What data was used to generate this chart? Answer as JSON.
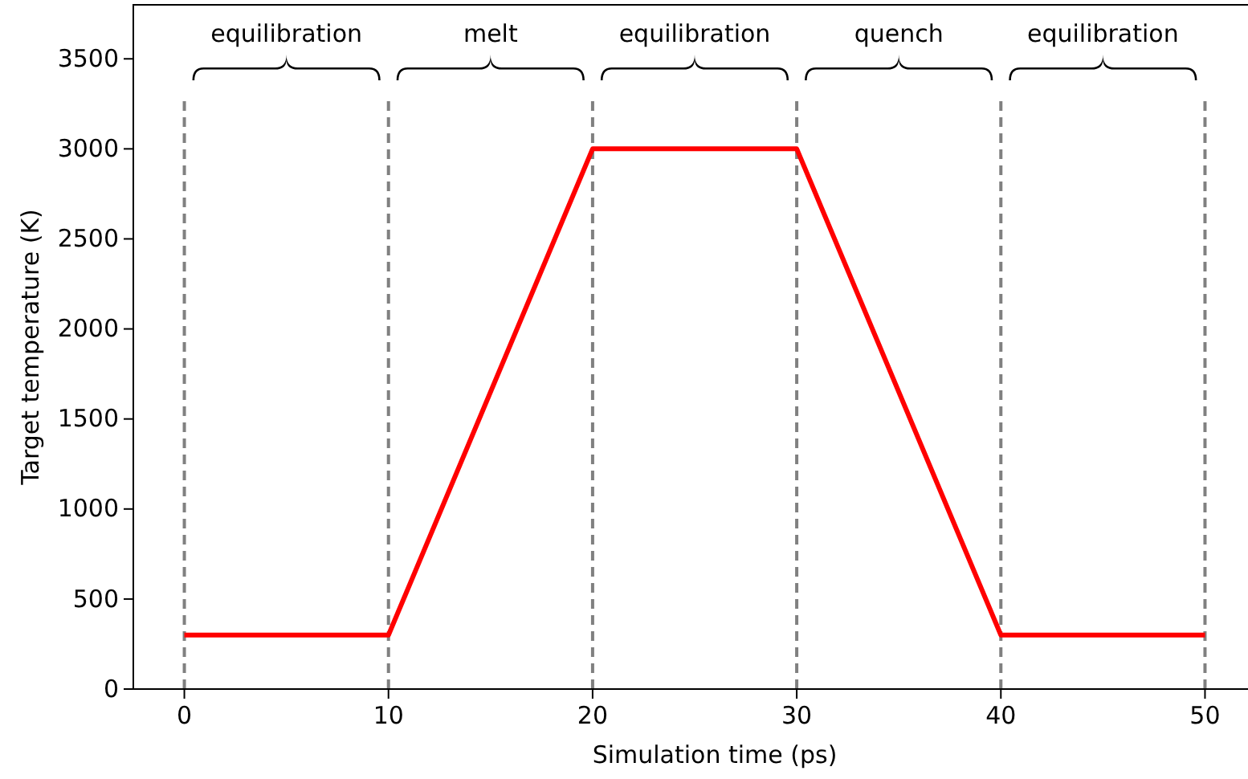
{
  "chart_data": {
    "type": "line",
    "xlabel": "Simulation time (ps)",
    "ylabel": "Target temperature (K)",
    "x": [
      0,
      10,
      20,
      30,
      40,
      50
    ],
    "series": [
      {
        "color": "#ff0000",
        "values": [
          300,
          300,
          3000,
          3000,
          300,
          300
        ]
      }
    ],
    "xlim": [
      -2.5,
      52.5
    ],
    "xticks": [
      0,
      10,
      20,
      30,
      40,
      50
    ],
    "ylim": [
      0,
      3800
    ],
    "yticks": [
      0,
      500,
      1000,
      1500,
      2000,
      2500,
      3000,
      3500
    ],
    "grid": false,
    "line_style": "solid",
    "marker": "none",
    "ref_lines": [
      {
        "axis": "x",
        "value": 0,
        "color": "#808080",
        "line_style": "dashed"
      },
      {
        "axis": "x",
        "value": 10,
        "color": "#808080",
        "line_style": "dashed"
      },
      {
        "axis": "x",
        "value": 20,
        "color": "#808080",
        "line_style": "dashed"
      },
      {
        "axis": "x",
        "value": 30,
        "color": "#808080",
        "line_style": "dashed"
      },
      {
        "axis": "x",
        "value": 40,
        "color": "#808080",
        "line_style": "dashed"
      },
      {
        "axis": "x",
        "value": 50,
        "color": "#808080",
        "line_style": "dashed"
      }
    ],
    "annotations": [
      "equilibration",
      "melt",
      "equilibration",
      "quench",
      "equilibration"
    ]
  }
}
